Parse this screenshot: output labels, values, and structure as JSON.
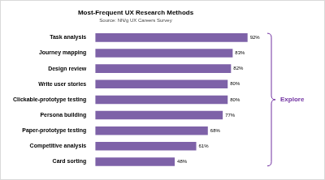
{
  "chart_data": {
    "type": "bar",
    "orientation": "horizontal",
    "title": "Most-Frequent UX Research Methods",
    "subtitle": "Source: NN/g UX Careers Survey",
    "annotation": "Explore",
    "categories": [
      "Task analysis",
      "Journey mapping",
      "Design review",
      "Write user stories",
      "Clickable-prototype testing",
      "Persona building",
      "Paper-prototype testing",
      "Competitive analysis",
      "Card sorting"
    ],
    "values": [
      92,
      83,
      82,
      80,
      80,
      77,
      68,
      61,
      48
    ],
    "value_labels": [
      "92%",
      "83%",
      "82%",
      "80%",
      "80%",
      "77%",
      "68%",
      "61%",
      "48%"
    ],
    "data_labels": true,
    "color": "#7e62a8",
    "xlim": [
      0,
      100
    ],
    "grid": false,
    "tick_labels": "y"
  }
}
